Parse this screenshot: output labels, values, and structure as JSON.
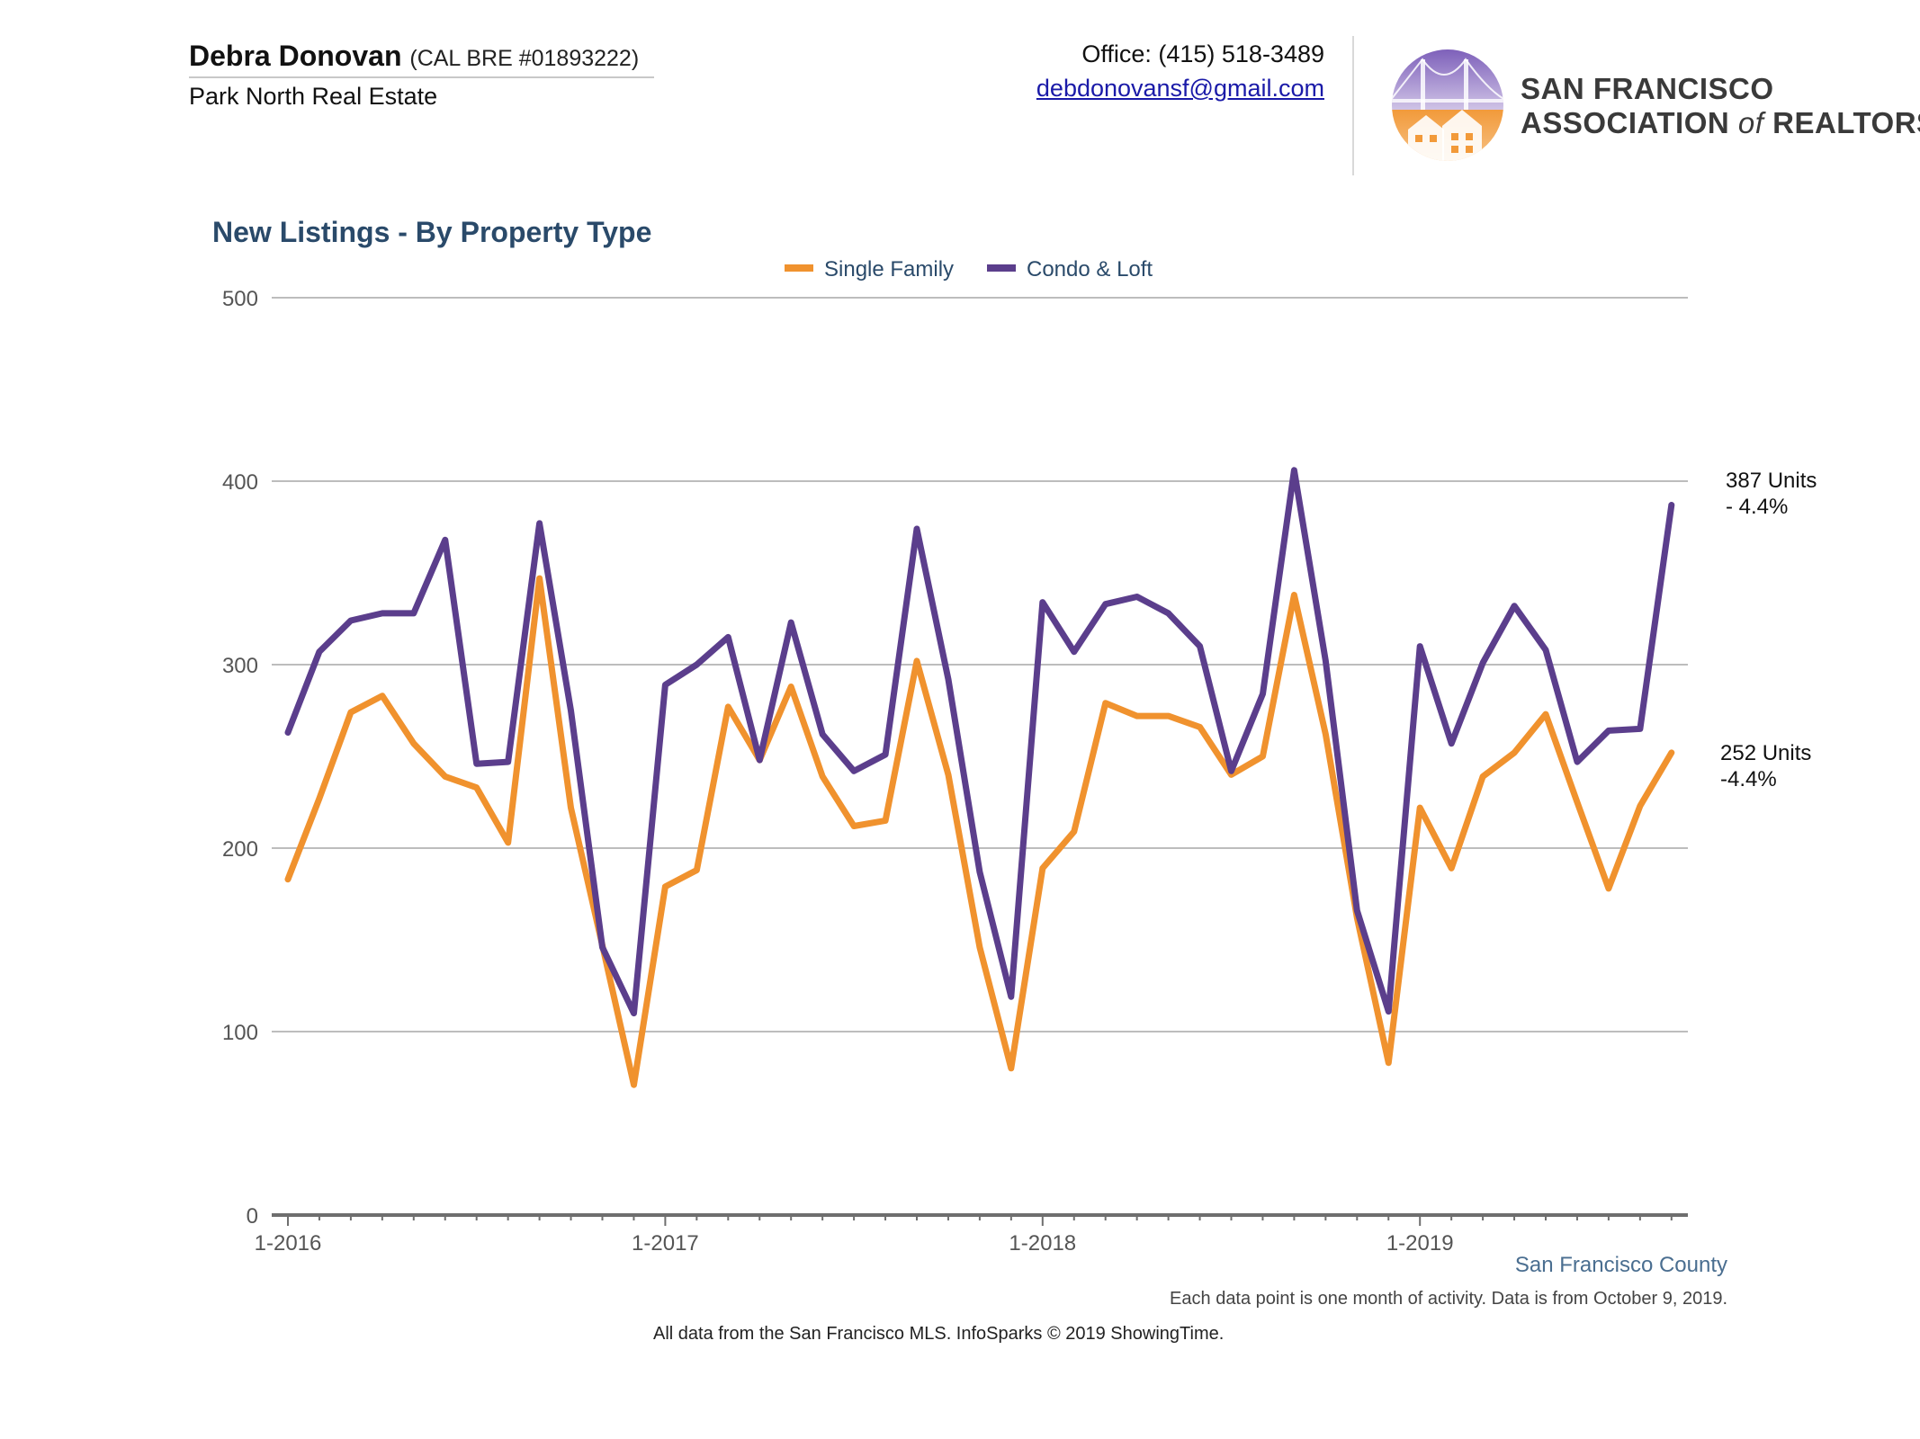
{
  "header": {
    "agent_name": "Debra Donovan",
    "agent_license": "(CAL BRE #01893222)",
    "brokerage": "Park North Real Estate",
    "office_phone": "Office: (415) 518-3489",
    "email": "debdonovansf@gmail.com",
    "logo": {
      "line1": "SAN FRANCISCO",
      "line2_a": "ASSOCIATION ",
      "line2_of": "of",
      "line2_b": " REALTORS",
      "registered_mark": "®",
      "colors": {
        "purple": "#6b4fa8",
        "orange": "#f0922e"
      }
    }
  },
  "chart_data": {
    "type": "line",
    "title": "New Listings - By Property Type",
    "xlabel": "",
    "ylabel": "",
    "ylim": [
      0,
      500
    ],
    "yticks": [
      0,
      100,
      200,
      300,
      400,
      500
    ],
    "xtick_labels": [
      "1-2016",
      "1-2017",
      "1-2018",
      "1-2019"
    ],
    "grid": true,
    "legend_position": "top-center",
    "x": [
      "1-2016",
      "2-2016",
      "3-2016",
      "4-2016",
      "5-2016",
      "6-2016",
      "7-2016",
      "8-2016",
      "9-2016",
      "10-2016",
      "11-2016",
      "12-2016",
      "1-2017",
      "2-2017",
      "3-2017",
      "4-2017",
      "5-2017",
      "6-2017",
      "7-2017",
      "8-2017",
      "9-2017",
      "10-2017",
      "11-2017",
      "12-2017",
      "1-2018",
      "2-2018",
      "3-2018",
      "4-2018",
      "5-2018",
      "6-2018",
      "7-2018",
      "8-2018",
      "9-2018",
      "10-2018",
      "11-2018",
      "12-2018",
      "1-2019",
      "2-2019",
      "3-2019",
      "4-2019",
      "5-2019",
      "6-2019",
      "7-2019",
      "8-2019",
      "9-2019"
    ],
    "series": [
      {
        "name": "Single Family",
        "color": "#f0922e",
        "values": [
          183,
          227,
          274,
          283,
          257,
          239,
          233,
          203,
          347,
          222,
          147,
          71,
          179,
          188,
          277,
          248,
          288,
          239,
          212,
          215,
          302,
          240,
          146,
          80,
          189,
          209,
          279,
          272,
          272,
          266,
          240,
          250,
          338,
          262,
          162,
          83,
          222,
          189,
          239,
          252,
          273,
          225,
          178,
          223,
          252
        ]
      },
      {
        "name": "Condo & Loft",
        "color": "#5b3e8c",
        "values": [
          263,
          307,
          324,
          328,
          328,
          368,
          246,
          247,
          377,
          275,
          146,
          110,
          289,
          300,
          315,
          248,
          323,
          262,
          242,
          251,
          374,
          292,
          187,
          119,
          334,
          307,
          333,
          337,
          328,
          310,
          242,
          284,
          406,
          302,
          166,
          111,
          310,
          257,
          301,
          332,
          308,
          247,
          264,
          265,
          387
        ]
      }
    ],
    "end_labels": {
      "condo_loft": [
        "387 Units",
        "- 4.4%"
      ],
      "single_family": [
        "252 Units",
        "-4.4%"
      ]
    },
    "region_label": "San Francisco County"
  },
  "footer": {
    "footnote": "Each data point is one month of activity. Data is from October 9, 2019.",
    "credit": "All data from the San Francisco MLS. InfoSparks © 2019 ShowingTime."
  }
}
